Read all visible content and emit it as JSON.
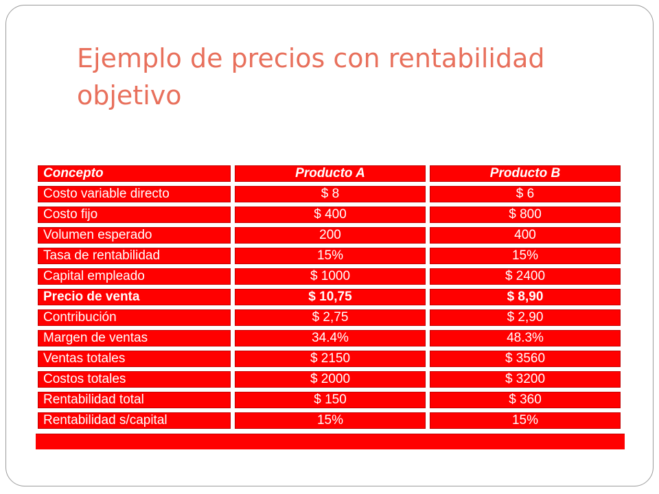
{
  "slide": {
    "title": "Ejemplo de precios con rentabilidad objetivo"
  },
  "table": {
    "header": {
      "concept": "Concepto",
      "product_a": "Producto A",
      "product_b": "Producto B"
    },
    "rows": [
      {
        "concept": "Costo variable directo",
        "product_a": "$ 8",
        "product_b": "$ 6",
        "bold": false
      },
      {
        "concept": "Costo fijo",
        "product_a": "$ 400",
        "product_b": "$ 800",
        "bold": false
      },
      {
        "concept": "Volumen esperado",
        "product_a": "200",
        "product_b": "400",
        "bold": false
      },
      {
        "concept": "Tasa de rentabilidad",
        "product_a": "15%",
        "product_b": "15%",
        "bold": false
      },
      {
        "concept": "Capital empleado",
        "product_a": "$ 1000",
        "product_b": "$ 2400",
        "bold": false
      },
      {
        "concept": "Precio de venta",
        "product_a": "$ 10,75",
        "product_b": "$ 8,90",
        "bold": true
      },
      {
        "concept": "Contribución",
        "product_a": "$ 2,75",
        "product_b": "$ 2,90",
        "bold": false
      },
      {
        "concept": "Margen de ventas",
        "product_a": "34.4%",
        "product_b": "48.3%",
        "bold": false
      },
      {
        "concept": "Ventas totales",
        "product_a": "$ 2150",
        "product_b": "$ 3560",
        "bold": false
      },
      {
        "concept": "Costos totales",
        "product_a": "$ 2000",
        "product_b": "$ 3200",
        "bold": false
      },
      {
        "concept": "Rentabilidad total",
        "product_a": "$ 150",
        "product_b": "$ 360",
        "bold": false
      },
      {
        "concept": "Rentabilidad s/capital",
        "product_a": "15%",
        "product_b": "15%",
        "bold": false
      }
    ]
  },
  "colors": {
    "title": "#e8705c",
    "cell_background": "#ff0000",
    "cell_text": "#ffffff",
    "frame_border": "#9a9a9a"
  }
}
